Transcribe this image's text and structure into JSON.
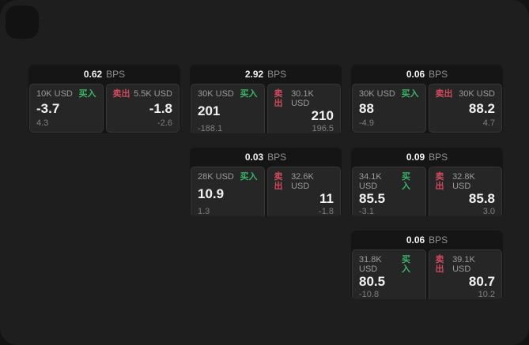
{
  "labels": {
    "bps_unit": "BPS",
    "buy_label": "买入",
    "sell_label": "卖出"
  },
  "colors": {
    "buy_green": "#3ab568",
    "sell_red": "#d04a5e"
  },
  "cards": [
    {
      "row": 1,
      "col": 1,
      "bps": "0.62",
      "buy": {
        "amount": "10K USD",
        "value": "-3.7",
        "delta": "4.3"
      },
      "sell": {
        "amount": "5.5K USD",
        "value": "-1.8",
        "delta": "-2.6"
      }
    },
    {
      "row": 1,
      "col": 2,
      "bps": "2.92",
      "buy": {
        "amount": "30K USD",
        "value": "201",
        "delta": "-188.1"
      },
      "sell": {
        "amount": "30.1K USD",
        "value": "210",
        "delta": "196.5"
      }
    },
    {
      "row": 1,
      "col": 3,
      "bps": "0.06",
      "buy": {
        "amount": "30K USD",
        "value": "88",
        "delta": "-4.9"
      },
      "sell": {
        "amount": "30K USD",
        "value": "88.2",
        "delta": "4.7"
      }
    },
    {
      "row": 2,
      "col": 2,
      "bps": "0.03",
      "buy": {
        "amount": "28K USD",
        "value": "10.9",
        "delta": "1.3"
      },
      "sell": {
        "amount": "32.6K USD",
        "value": "11",
        "delta": "-1.8"
      }
    },
    {
      "row": 2,
      "col": 3,
      "bps": "0.09",
      "buy": {
        "amount": "34.1K USD",
        "value": "85.5",
        "delta": "-3.1"
      },
      "sell": {
        "amount": "32.8K USD",
        "value": "85.8",
        "delta": "3.0"
      }
    },
    {
      "row": 3,
      "col": 3,
      "bps": "0.06",
      "buy": {
        "amount": "31.8K USD",
        "value": "80.5",
        "delta": "-10.8"
      },
      "sell": {
        "amount": "39.1K USD",
        "value": "80.7",
        "delta": "10.2"
      }
    }
  ]
}
